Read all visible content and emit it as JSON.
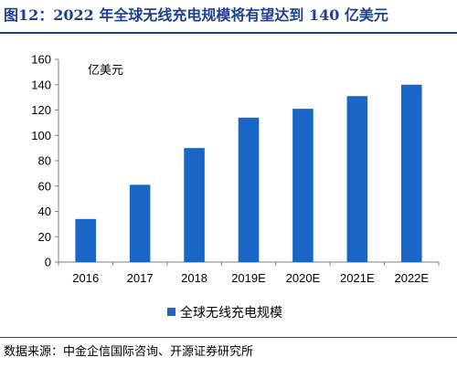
{
  "title": "图12：2022 年全球无线充电规模将有望达到 140 亿美元",
  "source": "数据来源：中金企信国际咨询、开源证券研究所",
  "colors": {
    "bar": "#1a66c7",
    "title": "#1f3f91",
    "axis": "#808080"
  },
  "chart_data": {
    "type": "bar",
    "categories": [
      "2016",
      "2017",
      "2018",
      "2019E",
      "2020E",
      "2021E",
      "2022E"
    ],
    "series": [
      {
        "name": "全球无线充电规模",
        "values": [
          34,
          61,
          90,
          114,
          121,
          131,
          140
        ]
      }
    ],
    "unit": "亿美元",
    "ylim": [
      0,
      160
    ],
    "yticks": [
      0,
      20,
      40,
      60,
      80,
      100,
      120,
      140,
      160
    ],
    "grid": false,
    "legend": "bottom-center"
  }
}
